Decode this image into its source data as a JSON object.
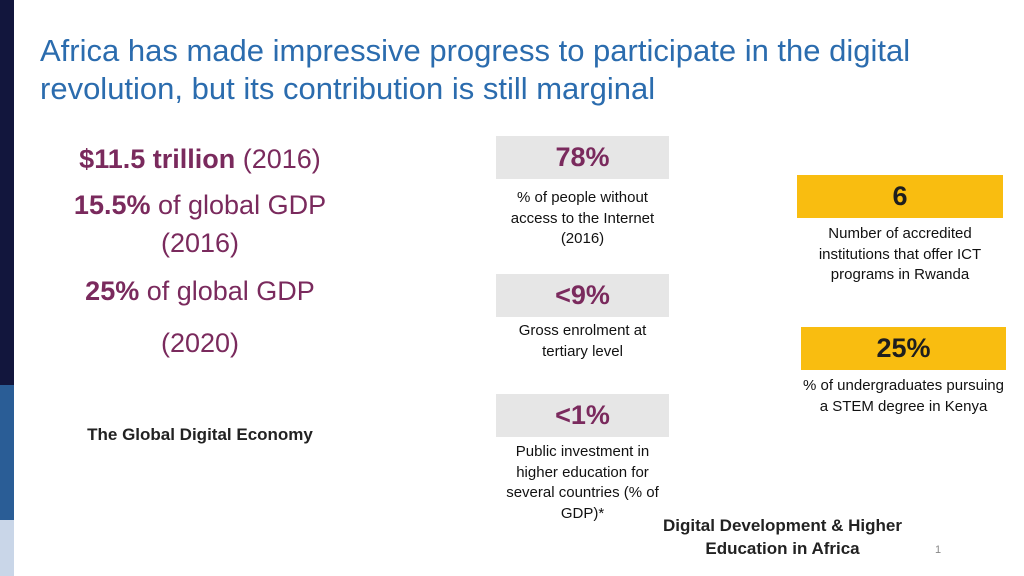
{
  "title": "Africa has made impressive progress to participate in the digital revolution, but its contribution is still marginal",
  "left_stats": {
    "line1_bold": "$11.5 trillion",
    "line1_rest": " (2016)",
    "line2_bold": "15.5%",
    "line2_rest": " of global GDP",
    "line3": "(2016)",
    "line4_bold": "25%",
    "line4_rest": " of global GDP",
    "line5": "(2020)"
  },
  "left_label": "The Global Digital Economy",
  "middle": [
    {
      "value": "78%",
      "desc": "% of people without access to the Internet (2016)"
    },
    {
      "value": "<9%",
      "desc": "Gross enrolment at tertiary level"
    },
    {
      "value": "<1%",
      "desc": "Public investment in higher education for several countries (% of GDP)*"
    }
  ],
  "right": [
    {
      "value": "6",
      "desc": "Number of accredited institutions that offer ICT programs in Rwanda"
    },
    {
      "value": "25%",
      "desc": "% of undergraduates pursuing a STEM degree in Kenya"
    }
  ],
  "footer_title": "Digital Development & Higher Education in Africa",
  "page_number": "1",
  "colors": {
    "title": "#2b6cae",
    "stat_accent": "#7a2a5d",
    "gray_box": "#e6e6e6",
    "gold_box": "#f9bd10",
    "sidebar_dark": "#12163d",
    "sidebar_mid": "#2a5d96",
    "sidebar_light": "#c9d6e8"
  }
}
